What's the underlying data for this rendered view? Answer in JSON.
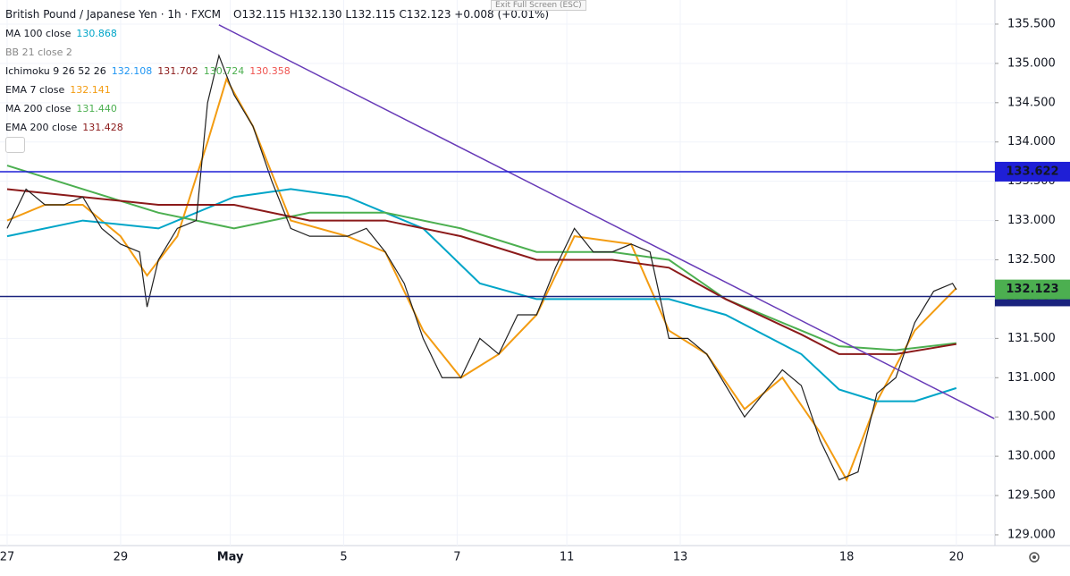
{
  "chart_data": {
    "type": "line",
    "legend": {
      "symbol": "British Pound / Japanese Yen · 1h · FXCM",
      "ohlc": "O132.115 H132.130 L132.115 C132.123 +0.008 (+0.01%)",
      "indicators": [
        {
          "label": "MA 100 close",
          "values": [
            "130.868"
          ],
          "colors": [
            "#00a5c8"
          ]
        },
        {
          "label": "BB 21 close 2",
          "values": [],
          "colors": []
        },
        {
          "label": "Ichimoku 9 26 52 26",
          "values": [
            "132.108",
            "131.702",
            "130.724",
            "130.358"
          ],
          "colors": [
            "#2196f3",
            "#8b1a1a",
            "#4caf50",
            "#ef5350"
          ]
        },
        {
          "label": "EMA 7 close",
          "values": [
            "132.141"
          ],
          "colors": [
            "#f39c12"
          ]
        },
        {
          "label": "MA 200 close",
          "values": [
            "131.440"
          ],
          "colors": [
            "#4caf50"
          ]
        },
        {
          "label": "EMA 200 close",
          "values": [
            "131.428"
          ],
          "colors": [
            "#8b1a1a"
          ]
        }
      ]
    },
    "exit_button": "Exit Full Screen (ESC)",
    "x": [
      0,
      5,
      10,
      15,
      20,
      25,
      30,
      35,
      37,
      40,
      45,
      50,
      53,
      56,
      60,
      65,
      70,
      75,
      80,
      85,
      90,
      95,
      100,
      105,
      110,
      115,
      120,
      125,
      130,
      135,
      140,
      145,
      150,
      155,
      160,
      165,
      170,
      175,
      180,
      185,
      190,
      195,
      200,
      205,
      210,
      215,
      220,
      225,
      230,
      235,
      240,
      245,
      250,
      251
    ],
    "values": [
      132.9,
      133.4,
      133.2,
      133.2,
      133.3,
      132.9,
      132.7,
      132.6,
      131.9,
      132.5,
      132.9,
      133.0,
      134.5,
      135.1,
      134.6,
      134.2,
      133.5,
      132.9,
      132.8,
      132.8,
      132.8,
      132.9,
      132.6,
      132.2,
      131.5,
      131.0,
      131.0,
      131.5,
      131.3,
      131.8,
      131.8,
      132.4,
      132.9,
      132.6,
      132.6,
      132.7,
      132.6,
      131.5,
      131.5,
      131.3,
      130.9,
      130.5,
      130.8,
      131.1,
      130.9,
      130.2,
      129.7,
      129.8,
      130.8,
      131.0,
      131.7,
      132.1,
      132.2,
      132.12
    ],
    "color": "#222222",
    "series": [
      {
        "name": "EMA 7 close",
        "color": "#f39c12",
        "x": [
          0,
          10,
          20,
          30,
          37,
          45,
          53,
          58,
          65,
          75,
          90,
          100,
          110,
          120,
          130,
          140,
          150,
          165,
          175,
          185,
          195,
          205,
          215,
          222,
          230,
          240,
          251
        ],
        "values": [
          133.0,
          133.2,
          133.2,
          132.8,
          132.3,
          132.8,
          134.0,
          134.8,
          134.2,
          133.0,
          132.8,
          132.6,
          131.6,
          131.0,
          131.3,
          131.8,
          132.8,
          132.7,
          131.6,
          131.3,
          130.6,
          131.0,
          130.3,
          129.7,
          130.7,
          131.6,
          132.14
        ]
      },
      {
        "name": "MA 100 close",
        "color": "#00a5c8",
        "x": [
          0,
          20,
          40,
          60,
          75,
          90,
          110,
          125,
          140,
          160,
          175,
          190,
          210,
          220,
          230,
          240,
          251
        ],
        "values": [
          132.8,
          133.0,
          132.9,
          133.3,
          133.4,
          133.3,
          132.9,
          132.2,
          132.0,
          132.0,
          132.0,
          131.8,
          131.3,
          130.85,
          130.7,
          130.7,
          130.868
        ]
      },
      {
        "name": "MA 200 close",
        "color": "#4caf50",
        "x": [
          0,
          20,
          40,
          60,
          80,
          100,
          120,
          140,
          160,
          175,
          190,
          210,
          220,
          235,
          251
        ],
        "values": [
          133.7,
          133.4,
          133.1,
          132.9,
          133.1,
          133.1,
          132.9,
          132.6,
          132.6,
          132.5,
          132.0,
          131.6,
          131.4,
          131.35,
          131.44
        ]
      },
      {
        "name": "EMA 200 close",
        "color": "#8b1a1a",
        "x": [
          0,
          20,
          40,
          60,
          80,
          100,
          120,
          140,
          160,
          175,
          190,
          210,
          220,
          235,
          251
        ],
        "values": [
          133.4,
          133.3,
          133.2,
          133.2,
          133.0,
          133.0,
          132.8,
          132.5,
          132.5,
          132.4,
          132.0,
          131.55,
          131.3,
          131.3,
          131.428
        ]
      }
    ],
    "trendline": {
      "x": [
        56,
        261
      ],
      "values": [
        135.49,
        130.48
      ],
      "color": "#673ab7"
    },
    "levels": [
      {
        "value": 133.622,
        "color": "#1f1fd6"
      },
      {
        "value": 132.034,
        "color": "#1a237e"
      }
    ],
    "last_price": {
      "value": 132.123,
      "color": "#4caf50"
    },
    "xlim": [
      -1.89,
      261.2
    ],
    "ylim": [
      128.863,
      135.807
    ],
    "yticks": [
      {
        "value": 129,
        "label": "129.000"
      },
      {
        "value": 129.5,
        "label": "129.500"
      },
      {
        "value": 130,
        "label": "130.000"
      },
      {
        "value": 130.5,
        "label": "130.500"
      },
      {
        "value": 131,
        "label": "131.000"
      },
      {
        "value": 131.5,
        "label": "131.500"
      },
      {
        "value": 132,
        "label": "132.000"
      },
      {
        "value": 132.5,
        "label": "132.500"
      },
      {
        "value": 133,
        "label": "133.000"
      },
      {
        "value": 133.5,
        "label": "133.500"
      },
      {
        "value": 134,
        "label": "134.000"
      },
      {
        "value": 134.5,
        "label": "134.500"
      },
      {
        "value": 135,
        "label": "135.000"
      },
      {
        "value": 135.5,
        "label": "135.500"
      }
    ],
    "xticks": [
      {
        "value": 0,
        "label": "27"
      },
      {
        "value": 30,
        "label": "29"
      },
      {
        "value": 59,
        "label": "May"
      },
      {
        "value": 89,
        "label": "5"
      },
      {
        "value": 119,
        "label": "7"
      },
      {
        "value": 148,
        "label": "11"
      },
      {
        "value": 178,
        "label": "13"
      },
      {
        "value": 222,
        "label": "18"
      },
      {
        "value": 251,
        "label": "20"
      }
    ]
  }
}
